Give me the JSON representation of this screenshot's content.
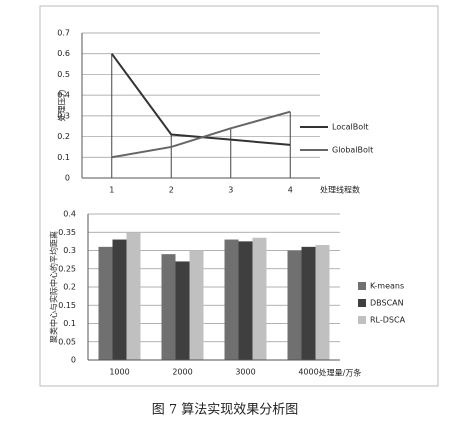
{
  "chart_data": [
    {
      "type": "line",
      "y_label": "处理压力",
      "x_label": "处理线程数",
      "categories": [
        "1",
        "2",
        "3",
        "4"
      ],
      "series": [
        {
          "name": "LocalBolt",
          "color": "#333333",
          "values": [
            0.6,
            0.21,
            0.185,
            0.16
          ]
        },
        {
          "name": "GlobalBolt",
          "color": "#666666",
          "values": [
            0.1,
            0.15,
            0.24,
            0.32
          ]
        }
      ],
      "ylim": [
        0,
        0.7
      ],
      "yticks": [
        0,
        0.1,
        0.2,
        0.3,
        0.4,
        0.5,
        0.6,
        0.7
      ],
      "grid": true,
      "legend": "right"
    },
    {
      "type": "bar",
      "y_label": "聚类中心与实际中心的平均距离",
      "x_label": "处理量/万条",
      "categories": [
        "1000",
        "2000",
        "3000",
        "4000"
      ],
      "series": [
        {
          "name": "K-means",
          "color": "#707070",
          "values": [
            0.31,
            0.29,
            0.33,
            0.3
          ]
        },
        {
          "name": "DBSCAN",
          "color": "#3f3f3f",
          "values": [
            0.33,
            0.27,
            0.325,
            0.31
          ]
        },
        {
          "name": "RL-DSCA",
          "color": "#c0c0c0",
          "values": [
            0.35,
            0.3,
            0.335,
            0.315
          ]
        }
      ],
      "ylim": [
        0,
        0.4
      ],
      "yticks": [
        0,
        0.05,
        0.1,
        0.15,
        0.2,
        0.25,
        0.3,
        0.35,
        0.4
      ],
      "grid": true,
      "legend": "right"
    }
  ],
  "caption": "图 7   算法实现效果分析图"
}
